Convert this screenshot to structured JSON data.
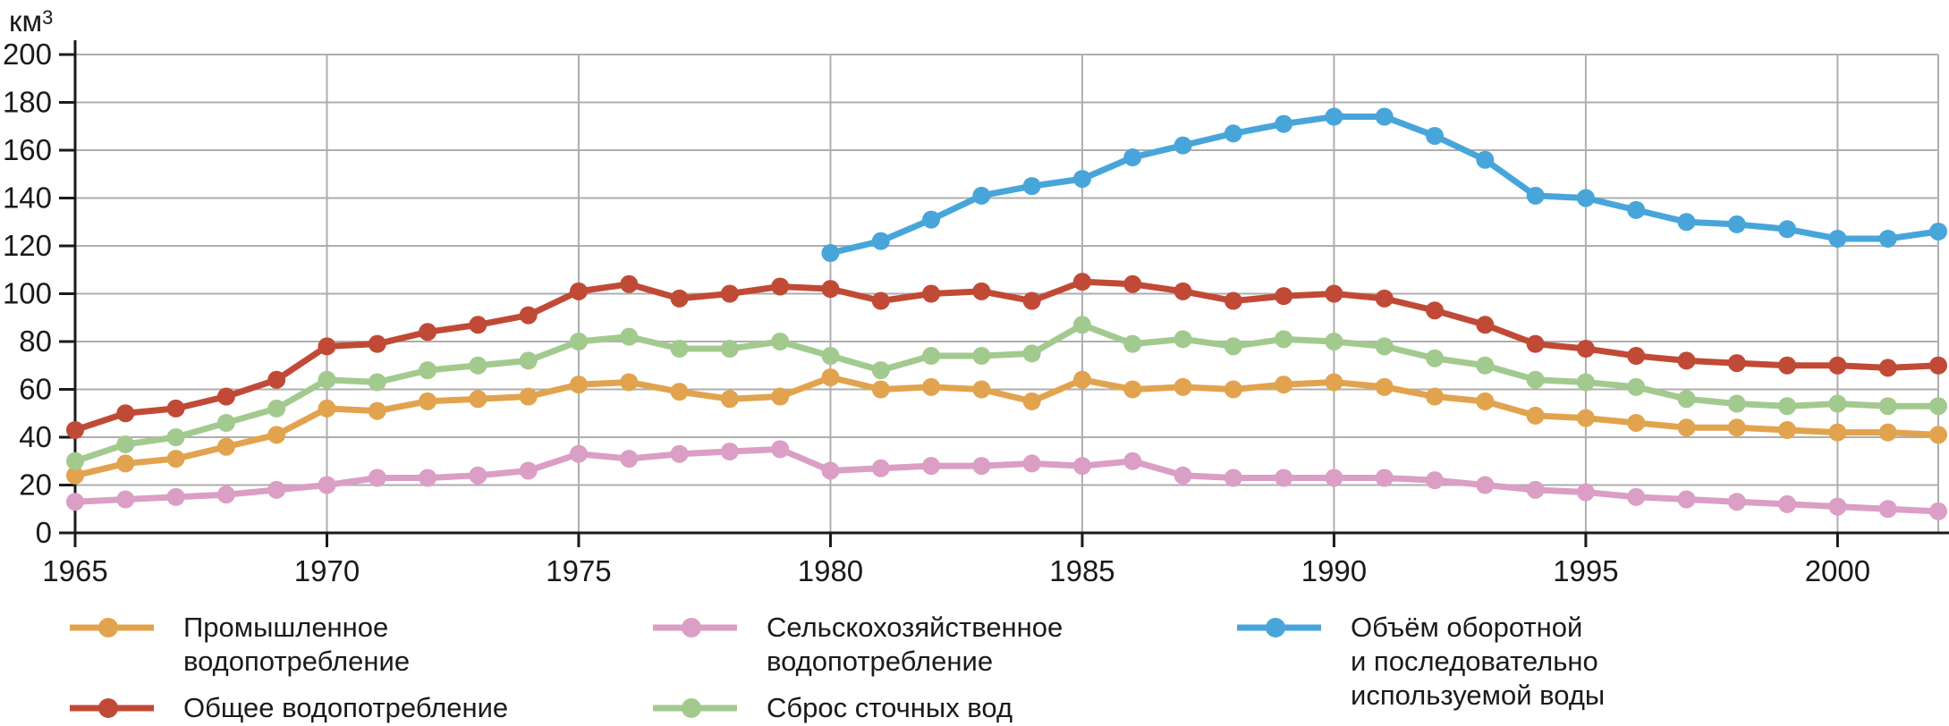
{
  "chart_data": {
    "type": "line",
    "title": "",
    "axes": {
      "unit_base": "км",
      "unit_sup": "3",
      "y_min": 0,
      "y_max": 200,
      "y_step": 20,
      "y_tick_labels": [
        0,
        20,
        40,
        60,
        80,
        100,
        120,
        140,
        160,
        180,
        200
      ],
      "x_tick_years": [
        1965,
        1970,
        1975,
        1980,
        1985,
        1990,
        1995,
        2000
      ],
      "grid": "on",
      "legend_position": "bottom"
    },
    "colors": {
      "grid": "#AEAEAE",
      "axis": "#1A1A1A",
      "text": "#1A1A1A",
      "background": "#FFFFFF"
    },
    "x": [
      1965,
      1966,
      1967,
      1968,
      1969,
      1970,
      1971,
      1972,
      1973,
      1974,
      1975,
      1976,
      1977,
      1978,
      1979,
      1980,
      1981,
      1982,
      1983,
      1984,
      1985,
      1986,
      1987,
      1988,
      1989,
      1990,
      1991,
      1992,
      1993,
      1994,
      1995,
      1996,
      1997,
      1998,
      1999,
      2000,
      2001,
      2002
    ],
    "series": [
      {
        "id": "industrial",
        "name": "Промышленное водопотребление",
        "color": "#E2A34E",
        "values": [
          24,
          29,
          31,
          36,
          41,
          52,
          51,
          55,
          56,
          57,
          62,
          63,
          59,
          56,
          57,
          65,
          60,
          61,
          60,
          55,
          64,
          60,
          61,
          60,
          62,
          63,
          61,
          57,
          55,
          49,
          48,
          46,
          44,
          44,
          43,
          42,
          42,
          41
        ]
      },
      {
        "id": "total",
        "name": "Общее водопотребление",
        "color": "#C04A36",
        "values": [
          43,
          50,
          52,
          57,
          64,
          78,
          79,
          84,
          87,
          91,
          101,
          104,
          98,
          100,
          103,
          102,
          97,
          100,
          101,
          97,
          105,
          104,
          101,
          97,
          99,
          100,
          98,
          93,
          87,
          79,
          77,
          74,
          72,
          71,
          70,
          70,
          69,
          70
        ]
      },
      {
        "id": "agricultural",
        "name": "Сельскохозяйственное водопотребление",
        "color": "#DB9EC4",
        "values": [
          13,
          14,
          15,
          16,
          18,
          20,
          23,
          23,
          24,
          26,
          33,
          31,
          33,
          34,
          35,
          26,
          27,
          28,
          28,
          29,
          28,
          30,
          24,
          23,
          23,
          23,
          23,
          22,
          20,
          18,
          17,
          15,
          14,
          13,
          12,
          11,
          10,
          9
        ]
      },
      {
        "id": "wastewater",
        "name": "Сброс сточных вод",
        "color": "#A2CA8E",
        "values": [
          30,
          37,
          40,
          46,
          52,
          64,
          63,
          68,
          70,
          72,
          80,
          82,
          77,
          77,
          80,
          74,
          68,
          74,
          74,
          75,
          87,
          79,
          81,
          78,
          81,
          80,
          78,
          73,
          70,
          64,
          63,
          61,
          56,
          54,
          53,
          54,
          53,
          53
        ]
      },
      {
        "id": "recycled",
        "name": "Объём оборотной и последовательно используемой воды",
        "color": "#48A5DA",
        "values": [
          null,
          null,
          null,
          null,
          null,
          null,
          null,
          null,
          null,
          null,
          null,
          null,
          null,
          null,
          null,
          117,
          122,
          131,
          141,
          145,
          148,
          157,
          162,
          167,
          171,
          174,
          174,
          166,
          156,
          141,
          140,
          135,
          130,
          129,
          127,
          123,
          123,
          126
        ]
      }
    ],
    "legend": [
      {
        "series": "industrial",
        "lines": [
          "Промышленное",
          "водопотребление"
        ]
      },
      {
        "series": "total",
        "lines": [
          "Общее водопотребление"
        ]
      },
      {
        "series": "agricultural",
        "lines": [
          "Сельскохозяйственное",
          "водопотребление"
        ]
      },
      {
        "series": "wastewater",
        "lines": [
          "Сброс сточных вод"
        ]
      },
      {
        "series": "recycled",
        "lines": [
          "Объём оборотной",
          "и последовательно",
          "используемой воды"
        ]
      }
    ]
  }
}
